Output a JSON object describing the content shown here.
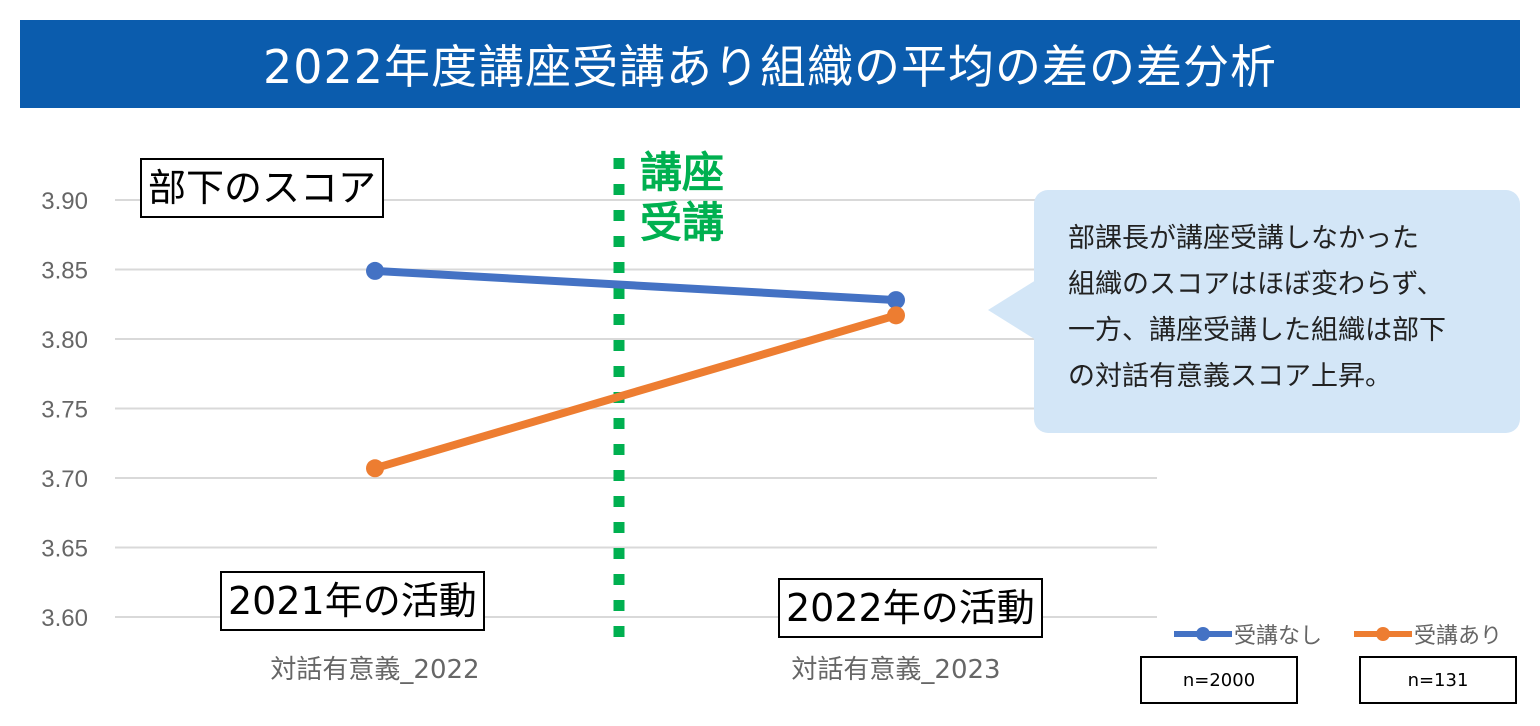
{
  "title": "2022年度講座受講あり組織の平均の差の差分析",
  "labels": {
    "score_label": "部下のスコア",
    "period1": "2021年の活動",
    "period2": "2022年の活動",
    "intervention_line1": "講座",
    "intervention_line2": "受講"
  },
  "callout": {
    "lines": [
      "部課長が講座受講しなかった",
      "組織のスコアはほぼ変わらず、",
      "一方、講座受講した組織は部下",
      "の対話有意義スコア上昇。"
    ]
  },
  "sample_sizes": {
    "no_course": "n=2000",
    "course": "n=131"
  },
  "chart_data": {
    "type": "line",
    "title": "2022年度講座受講あり組織の平均の差の差分析",
    "categories": [
      "対話有意義_2022",
      "対話有意義_2023"
    ],
    "series": [
      {
        "name": "受講なし",
        "values": [
          3.849,
          3.828
        ],
        "color": "#4472c4"
      },
      {
        "name": "受講あり",
        "values": [
          3.707,
          3.817
        ],
        "color": "#ed7d31"
      }
    ],
    "ylim": [
      3.6,
      3.9
    ],
    "yticks": [
      "3.60",
      "3.65",
      "3.70",
      "3.75",
      "3.80",
      "3.85",
      "3.90"
    ],
    "grid": true,
    "legend_position": "bottom-right",
    "intervention_color": "#00b050"
  }
}
